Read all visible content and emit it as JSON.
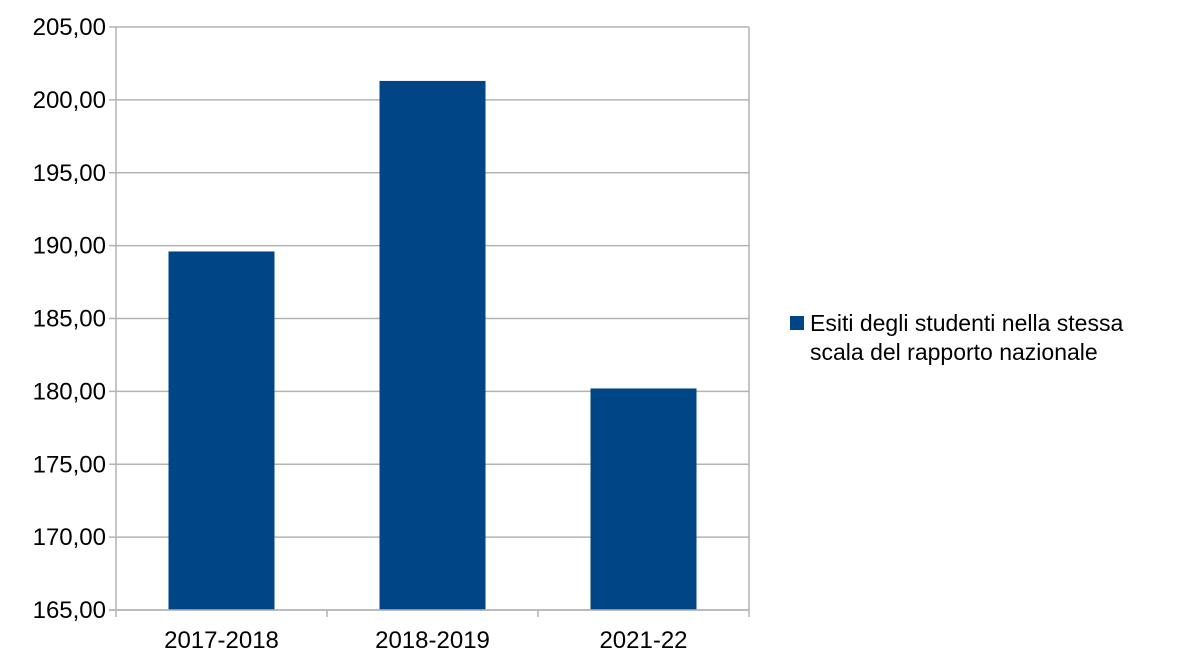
{
  "chart_data": {
    "type": "bar",
    "title": "",
    "xlabel": "",
    "ylabel": "",
    "categories": [
      "2017-2018",
      "2018-2019",
      "2021-22"
    ],
    "series": [
      {
        "name": "Esiti degli studenti nella stessa scala del rapporto nazionale",
        "values": [
          189.6,
          201.3,
          180.2
        ]
      }
    ],
    "ylim": [
      165,
      205
    ],
    "yticks": [
      "165,00",
      "170,00",
      "175,00",
      "180,00",
      "185,00",
      "190,00",
      "195,00",
      "200,00",
      "205,00"
    ],
    "grid": true,
    "legend_position": "right",
    "colors": {
      "bar": "#004586",
      "grid": "#b3b3b3",
      "axis": "#b3b3b3"
    }
  }
}
